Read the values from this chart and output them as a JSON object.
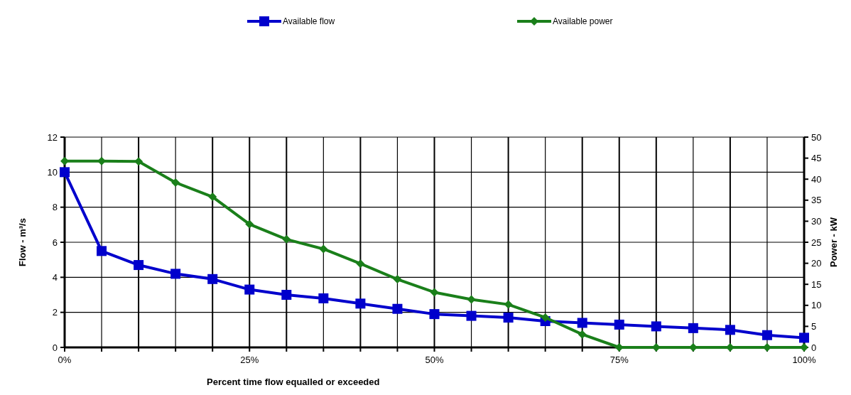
{
  "chart_data": {
    "type": "line",
    "xlabel": "Percent time flow equalled or exceeded",
    "ylabel": "Flow - m³/s",
    "y2label": "Power - kW",
    "x": [
      0,
      5,
      10,
      15,
      20,
      25,
      30,
      35,
      40,
      45,
      50,
      55,
      60,
      65,
      70,
      75,
      80,
      85,
      90,
      95,
      100
    ],
    "xlim": [
      0,
      100
    ],
    "xticks": [
      {
        "value": 0,
        "label": "0%"
      },
      {
        "value": 5,
        "label": null
      },
      {
        "value": 10,
        "label": null
      },
      {
        "value": 15,
        "label": null
      },
      {
        "value": 20,
        "label": null
      },
      {
        "value": 25,
        "label": "25%"
      },
      {
        "value": 30,
        "label": null
      },
      {
        "value": 35,
        "label": null
      },
      {
        "value": 40,
        "label": null
      },
      {
        "value": 45,
        "label": null
      },
      {
        "value": 50,
        "label": "50%"
      },
      {
        "value": 55,
        "label": null
      },
      {
        "value": 60,
        "label": null
      },
      {
        "value": 65,
        "label": null
      },
      {
        "value": 70,
        "label": null
      },
      {
        "value": 75,
        "label": "75%"
      },
      {
        "value": 80,
        "label": null
      },
      {
        "value": 85,
        "label": null
      },
      {
        "value": 90,
        "label": null
      },
      {
        "value": 95,
        "label": null
      },
      {
        "value": 100,
        "label": "100%"
      }
    ],
    "ylim": [
      0,
      12
    ],
    "yticks": [
      0,
      2,
      4,
      6,
      8,
      10,
      12
    ],
    "y2lim": [
      0,
      50
    ],
    "y2ticks": [
      0,
      5,
      10,
      15,
      20,
      25,
      30,
      35,
      40,
      45,
      50
    ],
    "grid": true,
    "legend": "top",
    "series": [
      {
        "name": "Available flow",
        "color": "#0000cc",
        "marker": "square",
        "values": [
          10,
          5.5,
          4.7,
          4.2,
          3.9,
          3.3,
          3.0,
          2.8,
          2.5,
          2.2,
          1.9,
          1.8,
          1.7,
          1.5,
          1.4,
          1.3,
          1.2,
          1.1,
          1.0,
          0.7,
          0.55
        ]
      },
      {
        "name": "Available power",
        "color": "#1a7f1a",
        "marker": "diamond",
        "axis": "y2",
        "values": [
          44.3,
          44.3,
          44.2,
          39.2,
          35.8,
          29.3,
          25.7,
          23.4,
          19.9,
          16.2,
          13.1,
          11.4,
          10.2,
          7.1,
          3.1,
          0,
          0,
          0,
          0,
          0,
          0
        ]
      }
    ]
  }
}
